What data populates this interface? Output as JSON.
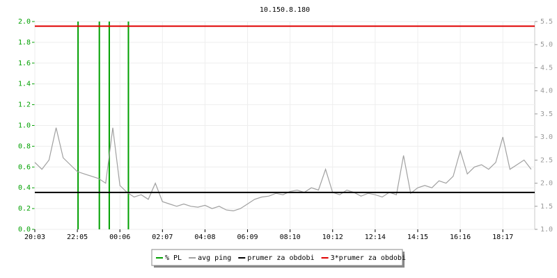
{
  "chart_data": {
    "type": "line",
    "title": "10.150.8.180",
    "xlim": [
      0,
      70.5
    ],
    "xticks": [
      {
        "value": 0,
        "label": "20:03"
      },
      {
        "value": 6,
        "label": "22:05"
      },
      {
        "value": 12,
        "label": "00:06"
      },
      {
        "value": 18,
        "label": "02:07"
      },
      {
        "value": 24,
        "label": "04:08"
      },
      {
        "value": 30,
        "label": "06:09"
      },
      {
        "value": 36,
        "label": "08:10"
      },
      {
        "value": 42,
        "label": "10:12"
      },
      {
        "value": 48,
        "label": "12:14"
      },
      {
        "value": 54,
        "label": "14:15"
      },
      {
        "value": 60,
        "label": "16:16"
      },
      {
        "value": 66,
        "label": "18:17"
      }
    ],
    "ylim": [
      0,
      2
    ],
    "yticks": [
      {
        "value": 0,
        "label": "0.0"
      },
      0.2,
      0.4,
      0.6,
      0.8,
      {
        "value": 1,
        "label": "1.0"
      },
      1.2,
      1.4,
      1.6,
      1.8,
      {
        "value": 2,
        "label": "2.0"
      }
    ],
    "y2lim": [
      1,
      5.5
    ],
    "y2ticks": [
      {
        "value": 1,
        "label": "1.0"
      },
      1.5,
      {
        "value": 2,
        "label": "2.0"
      },
      2.5,
      {
        "value": 3,
        "label": "3.0"
      },
      3.5,
      {
        "value": 4,
        "label": "4.0"
      },
      4.5,
      {
        "value": 5,
        "label": "5.0"
      },
      5.5
    ],
    "grid": true,
    "series": [
      {
        "name": "% PL",
        "color": "#00a000",
        "style": "spike",
        "x": [
          6.1,
          9.1,
          10.5,
          13.2
        ],
        "values": [
          2,
          2,
          2,
          2
        ]
      },
      {
        "name": "avg ping",
        "color": "#a0a0a0",
        "axis": "y2",
        "style": "line",
        "values": [
          2.45,
          2.3,
          2.5,
          3.2,
          2.55,
          2.4,
          2.25,
          2.2,
          2.15,
          2.1,
          2.0,
          3.2,
          1.95,
          1.8,
          1.7,
          1.75,
          1.65,
          2.0,
          1.6,
          1.55,
          1.5,
          1.55,
          1.5,
          1.48,
          1.52,
          1.45,
          1.5,
          1.42,
          1.4,
          1.45,
          1.55,
          1.65,
          1.7,
          1.72,
          1.78,
          1.75,
          1.82,
          1.85,
          1.8,
          1.9,
          1.85,
          2.3,
          1.8,
          1.75,
          1.85,
          1.8,
          1.72,
          1.78,
          1.75,
          1.7,
          1.8,
          1.75,
          2.6,
          1.78,
          1.9,
          1.95,
          1.9,
          2.05,
          2.0,
          2.15,
          2.7,
          2.2,
          2.35,
          2.4,
          2.3,
          2.45,
          3.0,
          2.3,
          2.4,
          2.5,
          2.3
        ]
      },
      {
        "name": "prumer za obdobi",
        "color": "#000000",
        "axis": "y2",
        "style": "hline",
        "values": [
          1.8
        ]
      },
      {
        "name": "3*prumer za obdobi",
        "color": "#e00000",
        "axis": "y2",
        "style": "hline",
        "values": [
          5.4
        ]
      }
    ]
  }
}
